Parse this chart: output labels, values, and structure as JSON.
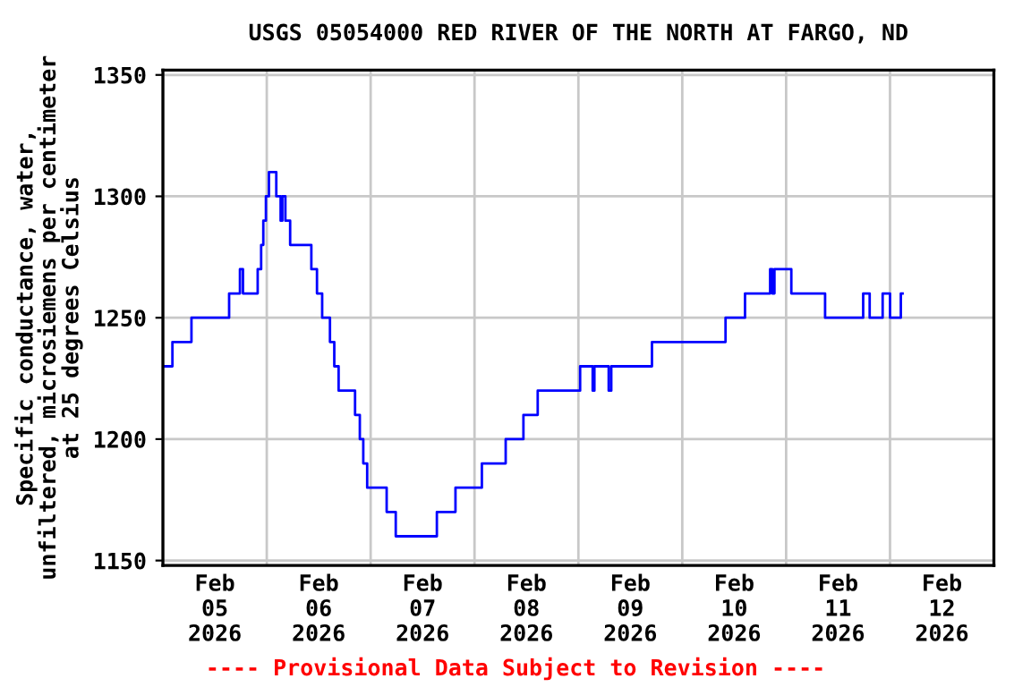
{
  "chart_data": {
    "type": "step",
    "title": "USGS 05054000 RED RIVER OF THE NORTH AT FARGO, ND",
    "ylabel": "Specific conductance, water,\nunfiltered, microsiemens per centimeter\nat 25 degrees Celsius",
    "annotations": [
      "---- Provisional Data Subject to Revision ----"
    ],
    "xlim": [
      "2026-02-05T00:00",
      "2026-02-13T00:00"
    ],
    "xticks": [
      {
        "value": "2026-02-05T00:00",
        "label": null
      },
      {
        "value": "2026-02-05T12:00",
        "label": "Feb\n05\n2026"
      },
      {
        "value": "2026-02-06T00:00",
        "label": null
      },
      {
        "value": "2026-02-06T12:00",
        "label": "Feb\n06\n2026"
      },
      {
        "value": "2026-02-07T00:00",
        "label": null
      },
      {
        "value": "2026-02-07T12:00",
        "label": "Feb\n07\n2026"
      },
      {
        "value": "2026-02-08T00:00",
        "label": null
      },
      {
        "value": "2026-02-08T12:00",
        "label": "Feb\n08\n2026"
      },
      {
        "value": "2026-02-09T00:00",
        "label": null
      },
      {
        "value": "2026-02-09T12:00",
        "label": "Feb\n09\n2026"
      },
      {
        "value": "2026-02-10T00:00",
        "label": null
      },
      {
        "value": "2026-02-10T12:00",
        "label": "Feb\n10\n2026"
      },
      {
        "value": "2026-02-11T00:00",
        "label": null
      },
      {
        "value": "2026-02-11T12:00",
        "label": "Feb\n11\n2026"
      },
      {
        "value": "2026-02-12T00:00",
        "label": null
      },
      {
        "value": "2026-02-12T12:00",
        "label": "Feb\n12\n2026"
      }
    ],
    "ylim": [
      1148,
      1352
    ],
    "yticks": [
      1150,
      1200,
      1250,
      1300,
      1350
    ],
    "grid": true,
    "legend": false,
    "series": [
      {
        "color": "#0000ff",
        "x": [
          "2026-02-05T00:00",
          "2026-02-05T02:12",
          "2026-02-05T06:36",
          "2026-02-05T15:18",
          "2026-02-05T17:48",
          "2026-02-05T18:30",
          "2026-02-05T21:54",
          "2026-02-05T22:42",
          "2026-02-05T23:12",
          "2026-02-05T23:48",
          "2026-02-06T00:30",
          "2026-02-06T02:12",
          "2026-02-06T03:12",
          "2026-02-06T03:36",
          "2026-02-06T04:18",
          "2026-02-06T05:24",
          "2026-02-06T10:18",
          "2026-02-06T11:36",
          "2026-02-06T12:48",
          "2026-02-06T14:36",
          "2026-02-06T15:36",
          "2026-02-06T16:36",
          "2026-02-06T20:24",
          "2026-02-06T21:30",
          "2026-02-06T22:18",
          "2026-02-06T23:12",
          "2026-02-07T03:42",
          "2026-02-07T05:48",
          "2026-02-07T15:18",
          "2026-02-07T19:36",
          "2026-02-08T01:42",
          "2026-02-08T07:12",
          "2026-02-08T11:18",
          "2026-02-08T14:36",
          "2026-02-09T00:24",
          "2026-02-09T03:18",
          "2026-02-09T03:42",
          "2026-02-09T07:00",
          "2026-02-09T07:36",
          "2026-02-09T17:00",
          "2026-02-10T10:00",
          "2026-02-10T14:30",
          "2026-02-10T20:18",
          "2026-02-10T20:48",
          "2026-02-10T21:18",
          "2026-02-11T01:12",
          "2026-02-11T09:00",
          "2026-02-11T17:48",
          "2026-02-11T19:18",
          "2026-02-11T22:18",
          "2026-02-12T00:00",
          "2026-02-12T02:30",
          "2026-02-12T02:54"
        ],
        "values": [
          1230,
          1240,
          1250,
          1260,
          1270,
          1260,
          1270,
          1280,
          1290,
          1300,
          1310,
          1300,
          1290,
          1300,
          1290,
          1280,
          1270,
          1260,
          1250,
          1240,
          1230,
          1220,
          1210,
          1200,
          1190,
          1180,
          1170,
          1160,
          1170,
          1180,
          1190,
          1200,
          1210,
          1220,
          1230,
          1220,
          1230,
          1220,
          1230,
          1240,
          1250,
          1260,
          1270,
          1260,
          1270,
          1260,
          1250,
          1260,
          1250,
          1260,
          1250,
          1260,
          1260
        ]
      }
    ]
  }
}
